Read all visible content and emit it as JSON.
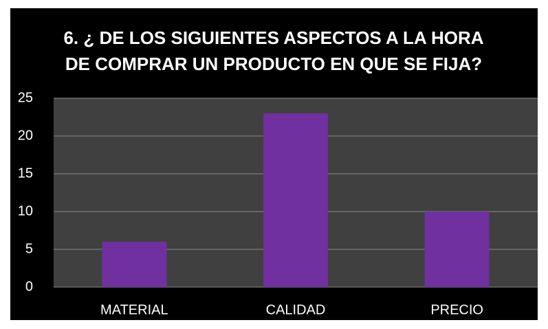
{
  "chart_data": {
    "type": "bar",
    "title": "6. ¿ DE LOS SIGUIENTES ASPECTOS A LA HORA DE COMPRAR UN PRODUCTO EN QUE SE FIJA?",
    "categories": [
      "MATERIAL",
      "CALIDAD",
      "PRECIO"
    ],
    "values": [
      6,
      23,
      10
    ],
    "color": "#7030a0",
    "ylim": [
      0,
      25
    ],
    "yticks": [
      0,
      5,
      10,
      15,
      20,
      25
    ],
    "grid": true
  }
}
